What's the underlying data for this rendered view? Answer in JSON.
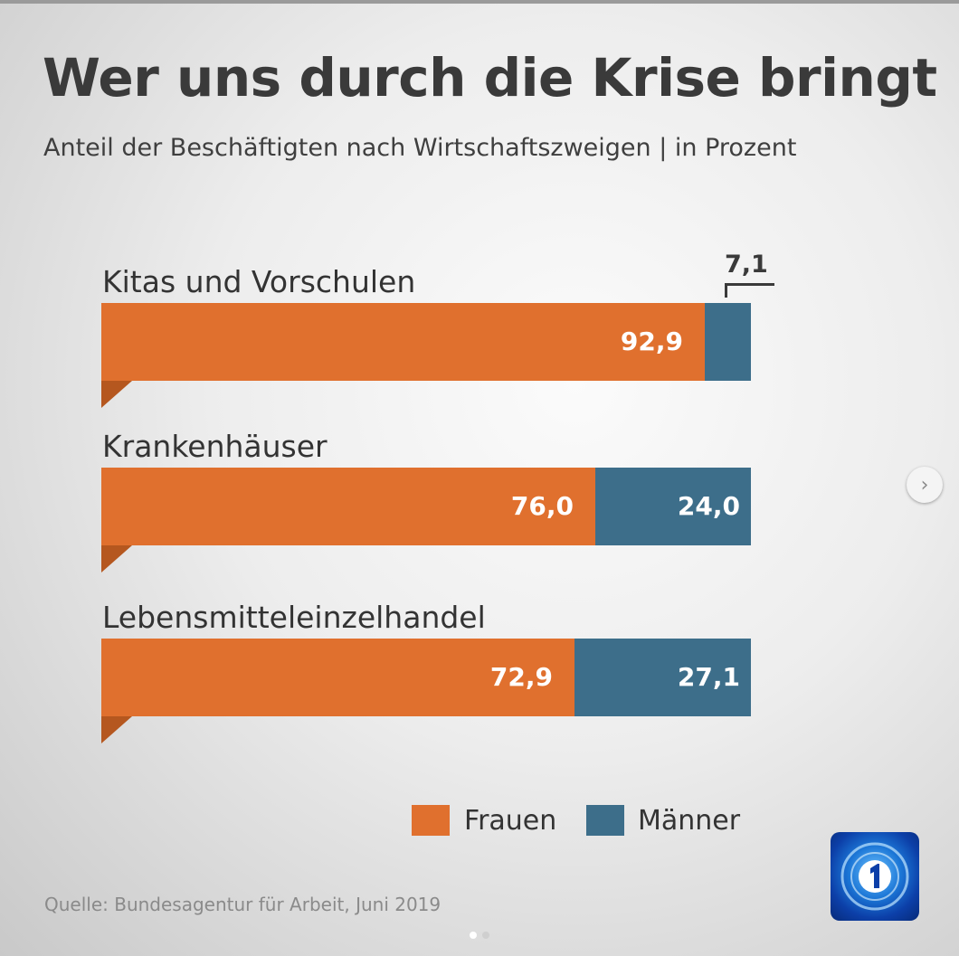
{
  "title": "Wer uns durch die Krise bringt",
  "subtitle": "Anteil der Beschäftigten nach Wirtschaftszweigen | in Prozent",
  "source": "Quelle: Bundesagentur für Arbeit, Juni 2019",
  "colors": {
    "frauen": "#e0702e",
    "maenner": "#3d6e8a"
  },
  "icons": {
    "logo": "ard-tagesschau-logo-icon",
    "next": "chevron-right-icon"
  },
  "chart_data": {
    "type": "bar",
    "orientation": "horizontal",
    "stacked": true,
    "categories": [
      "Kitas und Vorschulen",
      "Krankenhäuser",
      "Lebensmitteleinzelhandel"
    ],
    "series": [
      {
        "name": "Frauen",
        "values": [
          92.9,
          76.0,
          72.9
        ],
        "labels": [
          "92,9",
          "76,0",
          "72,9"
        ]
      },
      {
        "name": "Männer",
        "values": [
          7.1,
          24.0,
          27.1
        ],
        "labels": [
          "7,1",
          "24,0",
          "27,1"
        ]
      }
    ],
    "xlim": [
      0,
      100
    ],
    "grid": false,
    "legend_position": "bottom-right"
  }
}
